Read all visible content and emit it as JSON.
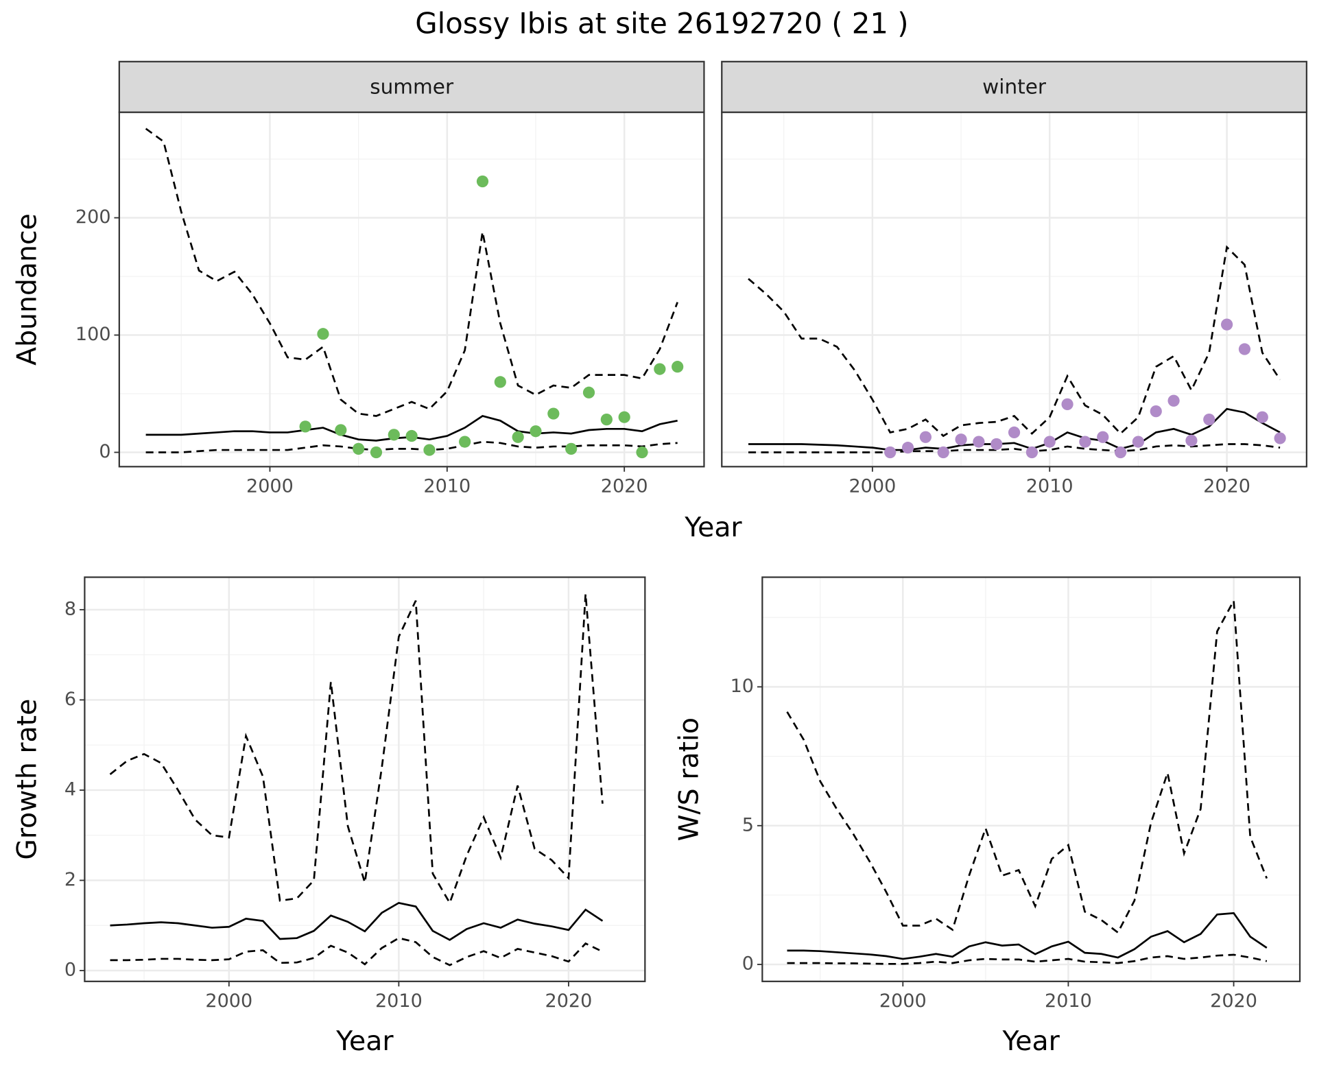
{
  "title": "Glossy Ibis at site 26192720 ( 21 )",
  "chart_data": [
    {
      "type": "line",
      "xlabel": "Year",
      "ylabel": "Abundance",
      "x": [
        1993,
        1994,
        1995,
        1996,
        1997,
        1998,
        1999,
        2000,
        2001,
        2002,
        2003,
        2004,
        2005,
        2006,
        2007,
        2008,
        2009,
        2010,
        2011,
        2012,
        2013,
        2014,
        2015,
        2016,
        2017,
        2018,
        2019,
        2020,
        2021,
        2022,
        2023
      ],
      "xlim": [
        1991.5,
        2024.5
      ],
      "xticks": [
        2000,
        2010,
        2020
      ],
      "ylim": [
        -12.2,
        290
      ],
      "yticks": [
        0,
        100,
        200
      ],
      "grid": true,
      "minor_grid": true,
      "facets": [
        {
          "strip": "summer",
          "series": [
            {
              "kind": "line",
              "color": "#000000",
              "dash": false,
              "values": [
                15,
                15,
                15,
                16,
                17,
                18,
                18,
                17,
                17,
                19,
                21,
                15,
                11,
                10,
                12,
                13,
                11,
                14,
                21,
                31,
                27,
                18,
                16,
                17,
                16,
                19,
                20,
                20,
                18,
                24,
                27
              ]
            },
            {
              "kind": "line",
              "color": "#000000",
              "dash": true,
              "values": [
                276,
                265,
                205,
                155,
                146,
                154,
                135,
                110,
                81,
                79,
                90,
                45,
                33,
                31,
                37,
                43,
                37,
                52,
                87,
                188,
                110,
                57,
                49,
                57,
                55,
                66,
                66,
                66,
                63,
                88,
                128
              ]
            },
            {
              "kind": "line",
              "color": "#000000",
              "dash": true,
              "values": [
                0,
                0,
                0,
                1,
                2,
                2,
                2,
                2,
                2,
                4,
                6,
                5,
                3,
                2,
                3,
                3,
                2,
                3,
                6,
                9,
                8,
                5,
                4,
                5,
                5,
                6,
                6,
                6,
                5,
                7,
                8
              ]
            },
            {
              "kind": "points",
              "color": "#6cbb5b",
              "values": [
                null,
                null,
                null,
                null,
                null,
                null,
                null,
                null,
                null,
                22,
                101,
                19,
                3,
                0,
                15,
                14,
                2,
                null,
                9,
                231,
                60,
                13,
                18,
                33,
                3,
                51,
                28,
                30,
                0,
                71,
                73
              ]
            }
          ]
        },
        {
          "strip": "winter",
          "series": [
            {
              "kind": "line",
              "color": "#000000",
              "dash": false,
              "values": [
                7,
                7,
                7,
                7,
                6.5,
                6,
                5,
                4,
                2,
                2,
                4,
                3,
                6,
                7,
                7,
                8,
                3,
                8,
                17,
                12,
                10,
                3,
                7,
                17,
                20,
                15,
                22,
                37,
                34,
                25,
                17
              ]
            },
            {
              "kind": "line",
              "color": "#000000",
              "dash": true,
              "values": [
                148,
                135,
                120,
                97,
                97,
                90,
                70,
                45,
                17,
                20,
                28,
                14,
                23,
                25,
                26,
                31,
                16,
                30,
                65,
                40,
                32,
                16,
                30,
                73,
                82,
                53,
                85,
                175,
                160,
                85,
                62
              ]
            },
            {
              "kind": "line",
              "color": "#000000",
              "dash": true,
              "values": [
                0,
                0,
                0,
                0,
                0,
                0,
                0,
                0,
                0,
                1,
                1,
                1,
                2,
                2,
                2,
                3,
                1,
                2,
                5,
                3,
                2,
                1,
                2,
                5,
                6,
                5,
                6,
                7,
                7,
                6,
                4
              ]
            },
            {
              "kind": "points",
              "color": "#b08bc8",
              "values": [
                null,
                null,
                null,
                null,
                null,
                null,
                null,
                null,
                0,
                4,
                13,
                0,
                11,
                9,
                7,
                17,
                0,
                9,
                41,
                9,
                13,
                0,
                9,
                35,
                44,
                10,
                28,
                109,
                88,
                30,
                12
              ]
            }
          ]
        }
      ]
    },
    {
      "type": "line",
      "xlabel": "Year",
      "ylabel": "Growth rate",
      "x": [
        1993,
        1994,
        1995,
        1996,
        1997,
        1998,
        1999,
        2000,
        2001,
        2002,
        2003,
        2004,
        2005,
        2006,
        2007,
        2008,
        2009,
        2010,
        2011,
        2012,
        2013,
        2014,
        2015,
        2016,
        2017,
        2018,
        2019,
        2020,
        2021,
        2022
      ],
      "xlim": [
        1991.5,
        2024.5
      ],
      "xticks": [
        2000,
        2010,
        2020
      ],
      "ylim": [
        -0.24,
        8.72
      ],
      "yticks": [
        0,
        2,
        4,
        6,
        8
      ],
      "grid": true,
      "minor_grid": true,
      "series": [
        {
          "kind": "line",
          "color": "#000000",
          "dash": false,
          "values": [
            1.0,
            1.02,
            1.05,
            1.07,
            1.05,
            1.0,
            0.95,
            0.97,
            1.15,
            1.1,
            0.7,
            0.72,
            0.88,
            1.22,
            1.08,
            0.87,
            1.28,
            1.5,
            1.42,
            0.88,
            0.68,
            0.92,
            1.05,
            0.95,
            1.13,
            1.04,
            0.98,
            0.9,
            1.35,
            1.1
          ]
        },
        {
          "kind": "line",
          "color": "#000000",
          "dash": true,
          "values": [
            4.35,
            4.65,
            4.8,
            4.6,
            4.0,
            3.35,
            3.0,
            2.95,
            5.2,
            4.3,
            1.55,
            1.6,
            2.0,
            6.4,
            3.2,
            1.95,
            4.5,
            7.4,
            8.2,
            2.15,
            1.5,
            2.55,
            3.4,
            2.5,
            4.1,
            2.7,
            2.45,
            2.05,
            8.35,
            3.7
          ]
        },
        {
          "kind": "line",
          "color": "#000000",
          "dash": true,
          "values": [
            0.23,
            0.23,
            0.24,
            0.26,
            0.26,
            0.24,
            0.23,
            0.25,
            0.42,
            0.45,
            0.17,
            0.18,
            0.28,
            0.55,
            0.4,
            0.14,
            0.5,
            0.72,
            0.63,
            0.3,
            0.12,
            0.3,
            0.43,
            0.28,
            0.48,
            0.4,
            0.32,
            0.2,
            0.6,
            0.42
          ]
        }
      ]
    },
    {
      "type": "line",
      "xlabel": "Year",
      "ylabel": "W/S ratio",
      "x": [
        1993,
        1994,
        1995,
        1996,
        1997,
        1998,
        1999,
        2000,
        2001,
        2002,
        2003,
        2004,
        2005,
        2006,
        2007,
        2008,
        2009,
        2010,
        2011,
        2012,
        2013,
        2014,
        2015,
        2016,
        2017,
        2018,
        2019,
        2020,
        2021,
        2022
      ],
      "xlim": [
        1991.5,
        2024.0
      ],
      "xticks": [
        2000,
        2010,
        2020
      ],
      "ylim": [
        -0.61,
        13.95
      ],
      "yticks": [
        0,
        5,
        10
      ],
      "grid": true,
      "minor_grid": true,
      "series": [
        {
          "kind": "line",
          "color": "#000000",
          "dash": false,
          "values": [
            0.5,
            0.5,
            0.48,
            0.44,
            0.4,
            0.36,
            0.3,
            0.2,
            0.28,
            0.38,
            0.28,
            0.65,
            0.8,
            0.68,
            0.72,
            0.37,
            0.65,
            0.82,
            0.42,
            0.38,
            0.25,
            0.55,
            1.0,
            1.2,
            0.8,
            1.1,
            1.8,
            1.85,
            1.0,
            0.6
          ]
        },
        {
          "kind": "line",
          "color": "#000000",
          "dash": true,
          "values": [
            9.1,
            8.1,
            6.6,
            5.6,
            4.7,
            3.7,
            2.6,
            1.4,
            1.4,
            1.65,
            1.25,
            3.2,
            4.9,
            3.2,
            3.4,
            2.1,
            3.8,
            4.3,
            1.9,
            1.6,
            1.15,
            2.3,
            5.1,
            6.9,
            4.0,
            5.6,
            12.0,
            13.1,
            4.6,
            3.1
          ]
        },
        {
          "kind": "line",
          "color": "#000000",
          "dash": true,
          "values": [
            0.05,
            0.05,
            0.05,
            0.04,
            0.04,
            0.03,
            0.02,
            0.02,
            0.05,
            0.1,
            0.05,
            0.15,
            0.2,
            0.18,
            0.18,
            0.1,
            0.15,
            0.2,
            0.1,
            0.08,
            0.05,
            0.12,
            0.25,
            0.3,
            0.2,
            0.25,
            0.32,
            0.35,
            0.25,
            0.12
          ]
        }
      ]
    }
  ]
}
